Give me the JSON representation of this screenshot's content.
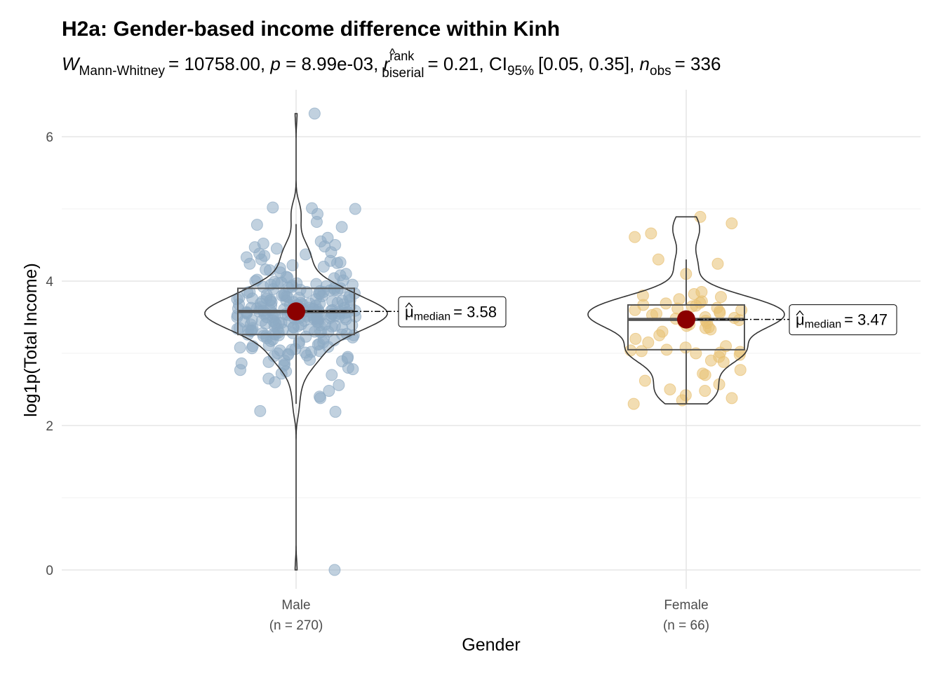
{
  "chart_data": {
    "type": "violin-box-scatter",
    "title": "H2a: Gender-based income difference within Kinh",
    "subtitle": {
      "stat_symbol": "W",
      "stat_sub": "Mann-Whitney",
      "stat_value": "= 10758.00,",
      "p_symbol": "p",
      "p_value": "= 8.99e-03,",
      "effect_symbol": "r",
      "effect_hat": "^",
      "effect_sup": "rank",
      "effect_sub": "biserial",
      "effect_value": "= 0.21, CI",
      "ci_sub": "95%",
      "ci_value": "[0.05, 0.35],",
      "n_symbol": "n",
      "n_sub": "obs",
      "n_value": "= 336"
    },
    "xlabel": "Gender",
    "ylabel": "log1p(Total Income)",
    "ylim": [
      -0.3,
      6.6
    ],
    "yticks": [
      0,
      2,
      4,
      6
    ],
    "grid": true,
    "colors": {
      "Male": "#8eabc4",
      "Female": "#e8c173",
      "median_point": "#8b0000",
      "violin": "#333333",
      "box": "#555555",
      "grid": "#ebebeb"
    },
    "median_label": {
      "symbol": "μ",
      "sub": "median"
    },
    "groups": [
      {
        "name": "Male",
        "n_label": "(n = 270)",
        "median": 3.58,
        "median_text": "= 3.58",
        "q1": 3.26,
        "q3": 3.9,
        "whisker_low": 2.3,
        "whisker_high": 4.79,
        "values": [
          6.32,
          5.02,
          5.01,
          5.0,
          4.93,
          4.82,
          4.78,
          4.75,
          4.55,
          4.5,
          4.48,
          4.45,
          4.4,
          4.38,
          4.37,
          4.35,
          4.3,
          4.28,
          4.26,
          4.25,
          4.24,
          4.22,
          4.2,
          4.18,
          4.15,
          4.12,
          4.1,
          4.08,
          4.06,
          4.05,
          4.04,
          4.02,
          4.0,
          3.99,
          3.98,
          3.97,
          3.95,
          3.94,
          3.93,
          3.92,
          3.91,
          3.9,
          3.9,
          3.89,
          3.88,
          3.87,
          3.86,
          3.85,
          3.85,
          3.84,
          3.83,
          3.82,
          3.82,
          3.81,
          3.8,
          3.8,
          3.79,
          3.78,
          3.78,
          3.77,
          3.76,
          3.76,
          3.75,
          3.75,
          3.74,
          3.73,
          3.73,
          3.72,
          3.72,
          3.71,
          3.7,
          3.7,
          3.69,
          3.69,
          3.68,
          3.68,
          3.67,
          3.67,
          3.66,
          3.66,
          3.65,
          3.65,
          3.64,
          3.64,
          3.63,
          3.63,
          3.62,
          3.62,
          3.61,
          3.61,
          3.6,
          3.6,
          3.6,
          3.59,
          3.59,
          3.59,
          3.58,
          3.58,
          3.58,
          3.58,
          3.58,
          3.57,
          3.57,
          3.57,
          3.56,
          3.56,
          3.56,
          3.55,
          3.55,
          3.55,
          3.54,
          3.54,
          3.54,
          3.53,
          3.53,
          3.53,
          3.52,
          3.52,
          3.52,
          3.51,
          3.51,
          3.51,
          3.5,
          3.5,
          3.5,
          3.49,
          3.49,
          3.48,
          3.48,
          3.48,
          3.47,
          3.47,
          3.46,
          3.46,
          3.45,
          3.45,
          3.44,
          3.44,
          3.43,
          3.43,
          3.42,
          3.42,
          3.41,
          3.41,
          3.4,
          3.4,
          3.39,
          3.39,
          3.38,
          3.38,
          3.37,
          3.37,
          3.36,
          3.36,
          3.35,
          3.35,
          3.34,
          3.34,
          3.33,
          3.33,
          3.32,
          3.32,
          3.31,
          3.31,
          3.3,
          3.3,
          3.29,
          3.29,
          3.28,
          3.28,
          3.27,
          3.27,
          3.26,
          3.26,
          3.25,
          3.25,
          3.24,
          3.24,
          3.23,
          3.22,
          3.21,
          3.2,
          3.19,
          3.18,
          3.17,
          3.16,
          3.15,
          3.14,
          3.13,
          3.12,
          3.11,
          3.1,
          3.09,
          3.08,
          3.07,
          3.06,
          3.05,
          3.04,
          3.03,
          3.02,
          3.01,
          3.0,
          2.99,
          2.98,
          2.97,
          2.96,
          2.95,
          2.93,
          2.91,
          2.9,
          2.89,
          2.88,
          2.86,
          2.85,
          2.83,
          2.8,
          2.78,
          2.77,
          2.75,
          2.72,
          3.62,
          3.68,
          3.71,
          3.74,
          3.79,
          3.83,
          3.87,
          3.92,
          3.96,
          4.01,
          3.45,
          3.49,
          3.53,
          3.57,
          3.61,
          3.55,
          3.5,
          3.4,
          3.35,
          3.3,
          3.95,
          3.88,
          3.85,
          3.8,
          3.77,
          3.73,
          3.69,
          3.63,
          3.59,
          3.56,
          2.7,
          2.65,
          2.6,
          2.56,
          2.48,
          2.4,
          2.38,
          2.2,
          2.19,
          0.0,
          4.6,
          4.52,
          4.47,
          4.33,
          4.16,
          3.97,
          3.64,
          3.52,
          3.44,
          3.26
        ]
      },
      {
        "name": "Female",
        "n_label": "(n = 66)",
        "median": 3.47,
        "median_text": "= 3.47",
        "q1": 3.05,
        "q3": 3.67,
        "whisker_low": 2.31,
        "whisker_high": 4.3,
        "values": [
          4.89,
          4.8,
          4.66,
          4.61,
          4.3,
          4.24,
          4.1,
          3.85,
          3.82,
          3.8,
          3.78,
          3.75,
          3.72,
          3.7,
          3.69,
          3.67,
          3.66,
          3.65,
          3.63,
          3.62,
          3.6,
          3.6,
          3.58,
          3.56,
          3.55,
          3.53,
          3.5,
          3.49,
          3.48,
          3.47,
          3.46,
          3.45,
          3.43,
          3.42,
          3.4,
          3.38,
          3.36,
          3.33,
          3.3,
          3.25,
          3.2,
          3.15,
          3.1,
          3.08,
          3.05,
          3.04,
          3.03,
          3.02,
          3.01,
          3.0,
          2.98,
          2.95,
          2.9,
          2.88,
          2.77,
          2.72,
          2.7,
          2.62,
          2.57,
          2.5,
          2.48,
          2.42,
          2.38,
          2.35,
          2.3,
          3.35
        ]
      }
    ]
  }
}
